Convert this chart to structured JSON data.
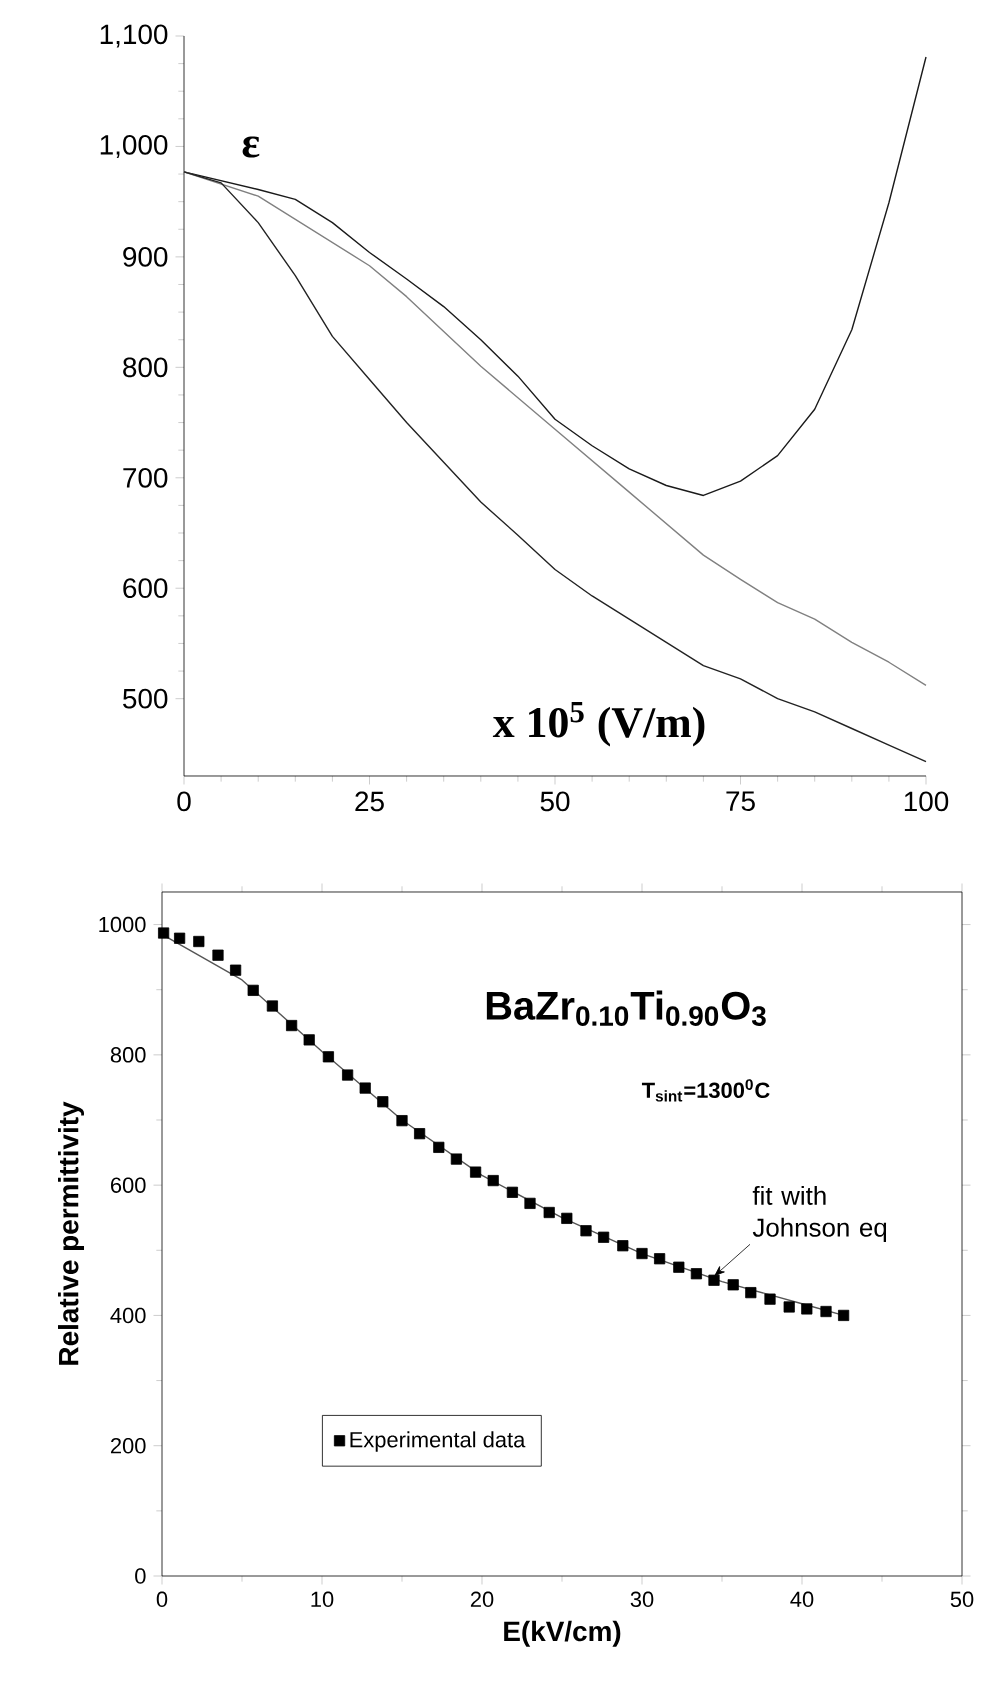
{
  "chart_data": [
    {
      "type": "line",
      "ylabel": "ε",
      "xlabel": "x 10$^{5}$ (V/m)",
      "xlim": [
        0,
        100
      ],
      "ylim": [
        430,
        1100
      ],
      "xticks": [
        0,
        25,
        50,
        75,
        100
      ],
      "yticks": [
        500,
        600,
        700,
        800,
        900,
        {
          "value": 1000,
          "label": "1,000"
        },
        {
          "value": 1100,
          "label": "1,100"
        }
      ],
      "series": [
        {
          "color": "#1a1a1a",
          "x": [
            0,
            10,
            15,
            20,
            25,
            30,
            35,
            40,
            45,
            50,
            55,
            60,
            65,
            70,
            75,
            80,
            85,
            90,
            95,
            100
          ],
          "values": [
            977,
            961,
            952,
            931,
            904,
            880,
            855,
            825,
            792,
            753,
            729,
            708,
            693,
            684,
            697,
            720,
            762,
            834,
            949,
            1081
          ]
        },
        {
          "color": "#808080",
          "x": [
            0,
            10,
            20,
            25,
            30,
            40,
            50,
            60,
            70,
            75,
            80,
            85,
            90,
            95,
            100
          ],
          "values": [
            977,
            955,
            913,
            892,
            864,
            801,
            744,
            687,
            630,
            608,
            587,
            572,
            551,
            533,
            512
          ]
        },
        {
          "color": "#222222",
          "x": [
            0,
            5,
            10,
            15,
            20,
            25,
            30,
            35,
            40,
            45,
            50,
            55,
            60,
            65,
            70,
            75,
            80,
            85,
            90,
            95,
            100
          ],
          "values": [
            977,
            967,
            931,
            883,
            828,
            789,
            750,
            714,
            678,
            648,
            617,
            593,
            572,
            551,
            530,
            518,
            500,
            488,
            473,
            458,
            443
          ]
        }
      ]
    },
    {
      "type": "scatter",
      "title": "BaZr$_{0.10}$Ti$_{0.90}$O$_{3}$",
      "subtitle": "T$_{sint}$=1300$^{0}$C",
      "xlabel": "E(kV/cm)",
      "ylabel": "Relative permittivity",
      "xlim": [
        0,
        50
      ],
      "ylim": [
        0,
        1050
      ],
      "xticks": [
        0,
        10,
        20,
        30,
        40,
        50
      ],
      "yticks": [
        0,
        200,
        400,
        600,
        800,
        1000
      ],
      "marker": "square",
      "legend": "bottom left",
      "annotations": [
        {
          "text": "fit with Johnson eq",
          "x": 34.5,
          "y": 460
        }
      ],
      "series": [
        {
          "name": "Experimental data",
          "color": "#000000",
          "x": [
            0.1,
            1.1,
            2.3,
            3.5,
            4.6,
            5.7,
            6.9,
            8.1,
            9.2,
            10.4,
            11.6,
            12.7,
            13.8,
            15.0,
            16.1,
            17.3,
            18.4,
            19.6,
            20.7,
            21.9,
            23.0,
            24.2,
            25.3,
            26.5,
            27.6,
            28.8,
            30.0,
            31.1,
            32.3,
            33.4,
            34.5,
            35.7,
            36.8,
            38.0,
            39.2,
            40.3,
            41.5,
            42.6
          ],
          "values": [
            987,
            979,
            974,
            953,
            930,
            899,
            875,
            845,
            823,
            797,
            769,
            749,
            728,
            699,
            679,
            658,
            640,
            620,
            607,
            589,
            572,
            558,
            549,
            530,
            520,
            507,
            495,
            487,
            474,
            464,
            454,
            447,
            435,
            425,
            413,
            410,
            406,
            400
          ]
        },
        {
          "type": "line",
          "marker": "none",
          "color": "#555555",
          "x": [
            0,
            5,
            10,
            15,
            20,
            25,
            30,
            35,
            40,
            42.6
          ],
          "values": [
            985,
            915,
            805,
            700,
            615,
            550,
            495,
            452,
            418,
            400
          ]
        }
      ]
    }
  ]
}
